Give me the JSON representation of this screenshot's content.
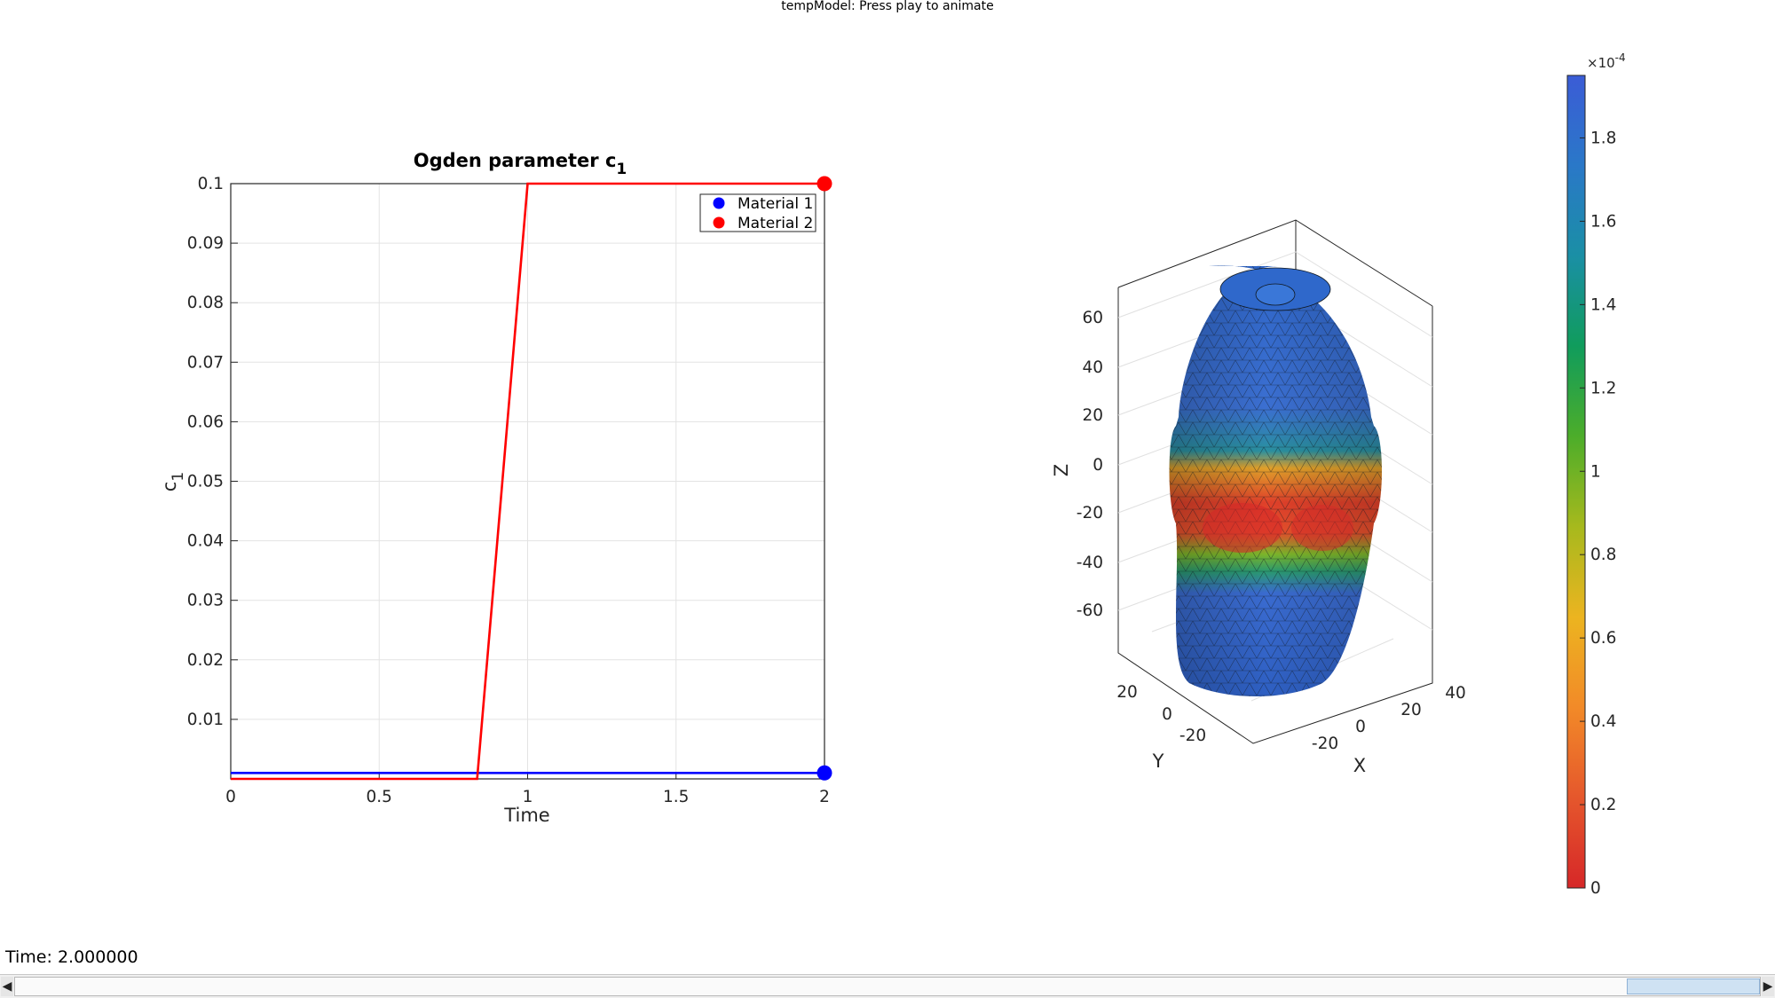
{
  "window": {
    "title": "tempModel: Press play to animate"
  },
  "chart_data": [
    {
      "type": "line",
      "title": "Ogden parameter c",
      "title_subscript": "1",
      "xlabel": "Time",
      "ylabel": "c",
      "ylabel_subscript": "1",
      "xlim": [
        0,
        2
      ],
      "ylim": [
        0,
        0.1
      ],
      "xticks": [
        "0",
        "0.5",
        "1",
        "1.5",
        "2"
      ],
      "xtick_values": [
        0,
        0.5,
        1,
        1.5,
        2
      ],
      "yticks": [
        "0.01",
        "0.02",
        "0.03",
        "0.04",
        "0.05",
        "0.06",
        "0.07",
        "0.08",
        "0.09",
        "0.1"
      ],
      "ytick_values": [
        0.01,
        0.02,
        0.03,
        0.04,
        0.05,
        0.06,
        0.07,
        0.08,
        0.09,
        0.1
      ],
      "grid": true,
      "legend_position": "top-right",
      "series": [
        {
          "name": "Material 1",
          "color": "#0000ff",
          "x": [
            0,
            2
          ],
          "y": [
            0.001,
            0.001
          ],
          "marker_at": [
            2,
            0.001
          ]
        },
        {
          "name": "Material 2",
          "color": "#ff0000",
          "x": [
            0,
            0.83,
            1,
            2
          ],
          "y": [
            0,
            0,
            0.1,
            0.1
          ],
          "marker_at": [
            2,
            0.1
          ]
        }
      ]
    },
    {
      "type": "surface-3d",
      "xlabel": "X",
      "ylabel": "Y",
      "zlabel": "Z",
      "xticks": [
        "-20",
        "0",
        "20",
        "40"
      ],
      "yticks": [
        "-20",
        "0",
        "20"
      ],
      "zticks": [
        "60",
        "40",
        "20",
        "0",
        "-20",
        "-40",
        "-60"
      ]
    },
    {
      "type": "colorbar",
      "exponent_label": "×10",
      "exponent_power": "-4",
      "range": [
        0,
        1.95
      ],
      "ticks": [
        "1.8",
        "1.6",
        "1.4",
        "1.2",
        "1",
        "0.8",
        "0.6",
        "0.4",
        "0.2",
        "0"
      ],
      "tick_values": [
        1.8,
        1.6,
        1.4,
        1.2,
        1,
        0.8,
        0.6,
        0.4,
        0.2,
        0
      ],
      "colormap": [
        "#3b5cd6",
        "#2a78c8",
        "#1a8fa5",
        "#109c5c",
        "#4cad2a",
        "#a7b91d",
        "#ecb420",
        "#f28a28",
        "#e5572c",
        "#d62728"
      ]
    }
  ],
  "status": {
    "time_label": "Time: 2.000000"
  },
  "slider": {
    "left_arrow": "◀",
    "right_arrow": "▶",
    "value_fraction": 1.0
  }
}
